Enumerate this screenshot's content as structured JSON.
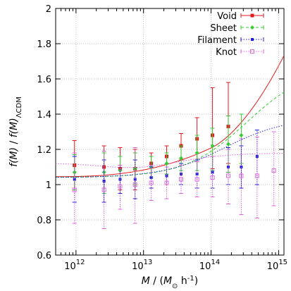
{
  "chart_data": {
    "type": "scatter",
    "title": "",
    "xscale": "log",
    "xlim": [
      500000000000.0,
      1200000000000000.0
    ],
    "ylim": [
      0.6,
      2.0
    ],
    "grid": true,
    "legend_position": "top-right",
    "xlabel": {
      "parts": [
        {
          "t": "M",
          "style": "italic"
        },
        {
          "t": " / ("
        },
        {
          "t": "M",
          "style": "italic"
        },
        {
          "t": "⊙",
          "shift": "sub"
        },
        {
          "t": " h"
        },
        {
          "t": "-1",
          "shift": "super"
        },
        {
          "t": ")"
        }
      ]
    },
    "ylabel": {
      "parts": [
        {
          "t": "f(M)",
          "style": "italic"
        },
        {
          "t": "  /  "
        },
        {
          "t": "f(M)",
          "style": "italic"
        },
        {
          "t": "ΛCDM",
          "shift": "sub"
        }
      ]
    },
    "xticks": [
      {
        "value": 1000000000000.0,
        "base": "10",
        "exp": "12"
      },
      {
        "value": 10000000000000.0,
        "base": "10",
        "exp": "13"
      },
      {
        "value": 100000000000000.0,
        "base": "10",
        "exp": "14"
      },
      {
        "value": 1000000000000000.0,
        "base": "10",
        "exp": "15"
      }
    ],
    "yticks": [
      {
        "value": 0.6,
        "label": "0.6"
      },
      {
        "value": 0.8,
        "label": "0.8"
      },
      {
        "value": 1.0,
        "label": "1"
      },
      {
        "value": 1.2,
        "label": "1.2"
      },
      {
        "value": 1.4,
        "label": "1.4"
      },
      {
        "value": 1.6,
        "label": "1.6"
      },
      {
        "value": 1.8,
        "label": "1.8"
      },
      {
        "value": 2.0,
        "label": "2"
      }
    ],
    "series": [
      {
        "name": "Void",
        "color": "#e31a1c",
        "marker": "filled-square",
        "line": "solid",
        "points": [
          {
            "x": 950000000000.0,
            "y": 1.11,
            "lo": 0.98,
            "hi": 1.25
          },
          {
            "x": 2600000000000.0,
            "y": 1.1,
            "lo": 0.98,
            "hi": 1.22
          },
          {
            "x": 4500000000000.0,
            "y": 1.09,
            "lo": 0.97,
            "hi": 1.21
          },
          {
            "x": 7500000000000.0,
            "y": 1.09,
            "lo": 0.97,
            "hi": 1.2
          },
          {
            "x": 13000000000000.0,
            "y": 1.12,
            "lo": 1.04,
            "hi": 1.18
          },
          {
            "x": 22000000000000.0,
            "y": 1.16,
            "lo": 1.1,
            "hi": 1.22
          },
          {
            "x": 36000000000000.0,
            "y": 1.22,
            "lo": 1.14,
            "hi": 1.29
          },
          {
            "x": 62000000000000.0,
            "y": 1.26,
            "lo": 1.13,
            "hi": 1.38
          },
          {
            "x": 105000000000000.0,
            "y": 1.28,
            "lo": 1.09,
            "hi": 1.55
          },
          {
            "x": 180000000000000.0,
            "y": 1.33,
            "lo": 1.12,
            "hi": 1.58
          }
        ],
        "curve": {
          "a": 1.045,
          "b": 0.0325,
          "c": 1.38,
          "x0": 1000000000000.0,
          "xmax": 1200000000000000.0
        }
      },
      {
        "name": "Sheet",
        "color": "#33cc33",
        "marker": "filled-diamond",
        "line": "dashed",
        "points": [
          {
            "x": 950000000000.0,
            "y": 1.07,
            "lo": 0.97,
            "hi": 1.17
          },
          {
            "x": 2600000000000.0,
            "y": 1.07,
            "lo": 0.95,
            "hi": 1.18
          },
          {
            "x": 4500000000000.0,
            "y": 1.08,
            "lo": 1.0,
            "hi": 1.16
          },
          {
            "x": 7500000000000.0,
            "y": 1.09,
            "lo": 1.0,
            "hi": 1.18
          },
          {
            "x": 13000000000000.0,
            "y": 1.1,
            "lo": 1.04,
            "hi": 1.16
          },
          {
            "x": 22000000000000.0,
            "y": 1.12,
            "lo": 1.06,
            "hi": 1.18
          },
          {
            "x": 36000000000000.0,
            "y": 1.15,
            "lo": 1.08,
            "hi": 1.22
          },
          {
            "x": 62000000000000.0,
            "y": 1.18,
            "lo": 1.08,
            "hi": 1.28
          },
          {
            "x": 105000000000000.0,
            "y": 1.22,
            "lo": 1.08,
            "hi": 1.32
          },
          {
            "x": 180000000000000.0,
            "y": 1.23,
            "lo": 1.07,
            "hi": 1.39
          },
          {
            "x": 280000000000000.0,
            "y": 1.28,
            "lo": 1.12,
            "hi": 1.4
          }
        ],
        "curve": {
          "a": 1.04,
          "b": 0.63,
          "c": 340000000000000.0,
          "x0": 1000000000000.0,
          "xmax": 1200000000000000.0,
          "form": "sigmoid"
        }
      },
      {
        "name": "Filament",
        "color": "#1f1fd6",
        "marker": "filled-small-square",
        "line": "dotted",
        "points": [
          {
            "x": 950000000000.0,
            "y": 1.03,
            "lo": 0.9,
            "hi": 1.16
          },
          {
            "x": 2600000000000.0,
            "y": 1.02,
            "lo": 0.9,
            "hi": 1.14
          },
          {
            "x": 4500000000000.0,
            "y": 1.03,
            "lo": 0.95,
            "hi": 1.11
          },
          {
            "x": 7500000000000.0,
            "y": 1.03,
            "lo": 0.92,
            "hi": 1.14
          },
          {
            "x": 13000000000000.0,
            "y": 1.04,
            "lo": 0.98,
            "hi": 1.1
          },
          {
            "x": 22000000000000.0,
            "y": 1.05,
            "lo": 1.0,
            "hi": 1.1
          },
          {
            "x": 36000000000000.0,
            "y": 1.06,
            "lo": 1.0,
            "hi": 1.12
          },
          {
            "x": 62000000000000.0,
            "y": 1.06,
            "lo": 0.98,
            "hi": 1.14
          },
          {
            "x": 105000000000000.0,
            "y": 1.07,
            "lo": 0.98,
            "hi": 1.16
          },
          {
            "x": 180000000000000.0,
            "y": 1.1,
            "lo": 1.0,
            "hi": 1.21
          },
          {
            "x": 280000000000000.0,
            "y": 1.1,
            "lo": 0.98,
            "hi": 1.22
          },
          {
            "x": 480000000000000.0,
            "y": 1.16,
            "lo": 1.0,
            "hi": 1.31
          }
        ],
        "curve": {
          "a": 1.04,
          "b": 0.34,
          "c": 160000000000000.0,
          "x0": 1000000000000.0,
          "xmax": 1200000000000000.0,
          "form": "sigmoid"
        }
      },
      {
        "name": "Knot",
        "color": "#e066e0",
        "marker": "open-square",
        "line": "dotted",
        "points": [
          {
            "x": 950000000000.0,
            "y": 0.97,
            "lo": 0.78,
            "hi": 1.18
          },
          {
            "x": 2600000000000.0,
            "y": 0.97,
            "lo": 0.75,
            "hi": 1.19
          },
          {
            "x": 4500000000000.0,
            "y": 0.99,
            "lo": 0.86,
            "hi": 1.11
          },
          {
            "x": 7500000000000.0,
            "y": 1.0,
            "lo": 0.78,
            "hi": 1.21
          },
          {
            "x": 13000000000000.0,
            "y": 1.01,
            "lo": 0.91,
            "hi": 1.11
          },
          {
            "x": 22000000000000.0,
            "y": 1.01,
            "lo": 0.92,
            "hi": 1.1
          },
          {
            "x": 36000000000000.0,
            "y": 1.03,
            "lo": 0.95,
            "hi": 1.11
          },
          {
            "x": 62000000000000.0,
            "y": 1.03,
            "lo": 0.93,
            "hi": 1.13
          },
          {
            "x": 105000000000000.0,
            "y": 1.04,
            "lo": 0.93,
            "hi": 1.16
          },
          {
            "x": 180000000000000.0,
            "y": 1.05,
            "lo": 0.89,
            "hi": 1.2
          },
          {
            "x": 280000000000000.0,
            "y": 1.05,
            "lo": 0.83,
            "hi": 1.26
          },
          {
            "x": 480000000000000.0,
            "y": 1.05,
            "lo": 0.81,
            "hi": 1.27
          },
          {
            "x": 850000000000000.0,
            "y": 1.08,
            "lo": 0.88,
            "hi": 1.3
          }
        ],
        "curve": {
          "a": 1.12,
          "b": 0.06,
          "c": 50000000000000.0,
          "x0": 500000000000.0,
          "xmax": 1200000000000000.0,
          "form": "knot"
        }
      }
    ]
  }
}
